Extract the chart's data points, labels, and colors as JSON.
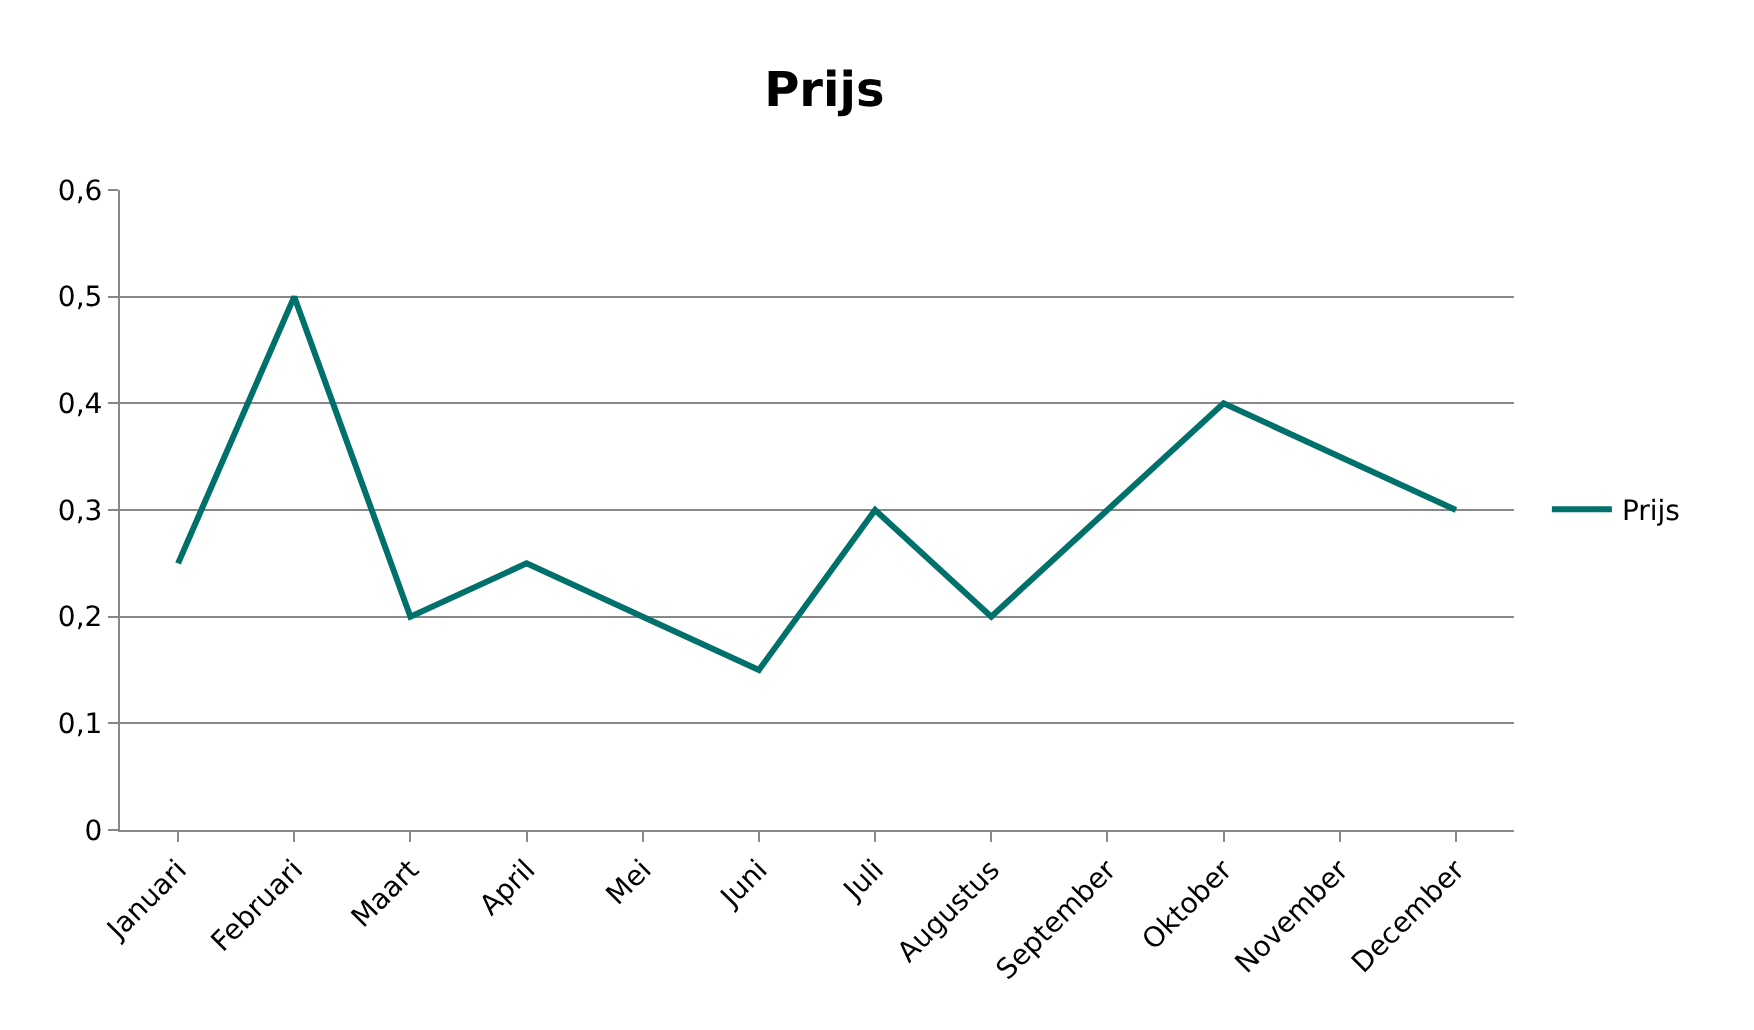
{
  "chart_data": {
    "type": "line",
    "title": "Prijs",
    "categories": [
      "Januari",
      "Februari",
      "Maart",
      "April",
      "Mei",
      "Juni",
      "Juli",
      "Augustus",
      "September",
      "Oktober",
      "November",
      "December"
    ],
    "series": [
      {
        "name": "Prijs",
        "color": "#00706b",
        "values": [
          0.25,
          0.5,
          0.2,
          0.25,
          0.2,
          0.15,
          0.3,
          0.2,
          0.3,
          0.4,
          0.35,
          0.3
        ]
      }
    ],
    "ylim": [
      0,
      0.6
    ],
    "yticks": [
      0,
      {
        "value": 0.1,
        "label": "0,1"
      },
      {
        "value": 0.2,
        "label": "0,2"
      },
      {
        "value": 0.3,
        "label": "0,3"
      },
      {
        "value": 0.4,
        "label": "0,4"
      },
      {
        "value": 0.5,
        "label": "0,5"
      },
      {
        "value": 0.6,
        "label": "0,6"
      }
    ],
    "grid": "y",
    "legend": "right",
    "marker": "none",
    "line_style": "solid"
  }
}
